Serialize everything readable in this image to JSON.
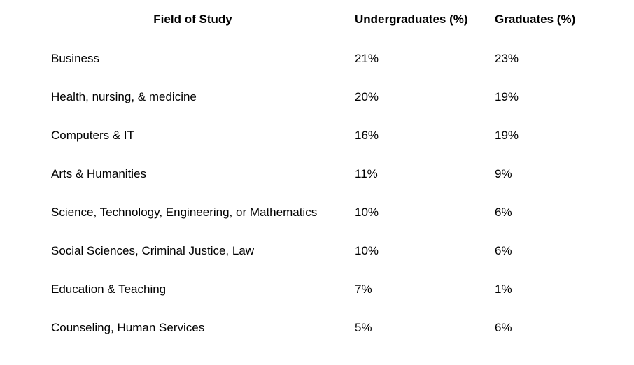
{
  "table": {
    "headers": {
      "field": "Field of Study",
      "undergraduates": "Undergraduates (%)",
      "graduates": "Graduates (%)"
    },
    "rows": [
      {
        "field": "Business",
        "undergraduates": "21%",
        "graduates": "23%"
      },
      {
        "field": "Health, nursing, & medicine",
        "undergraduates": "20%",
        "graduates": "19%"
      },
      {
        "field": "Computers & IT",
        "undergraduates": "16%",
        "graduates": "19%"
      },
      {
        "field": "Arts & Humanities",
        "undergraduates": "11%",
        "graduates": "9%"
      },
      {
        "field": "Science, Technology, Engineering, or Mathematics",
        "undergraduates": "10%",
        "graduates": "6%"
      },
      {
        "field": "Social Sciences, Criminal Justice, Law",
        "undergraduates": "10%",
        "graduates": "6%"
      },
      {
        "field": "Education & Teaching",
        "undergraduates": "7%",
        "graduates": "1%"
      },
      {
        "field": "Counseling, Human Services",
        "undergraduates": "5%",
        "graduates": "6%"
      }
    ]
  }
}
